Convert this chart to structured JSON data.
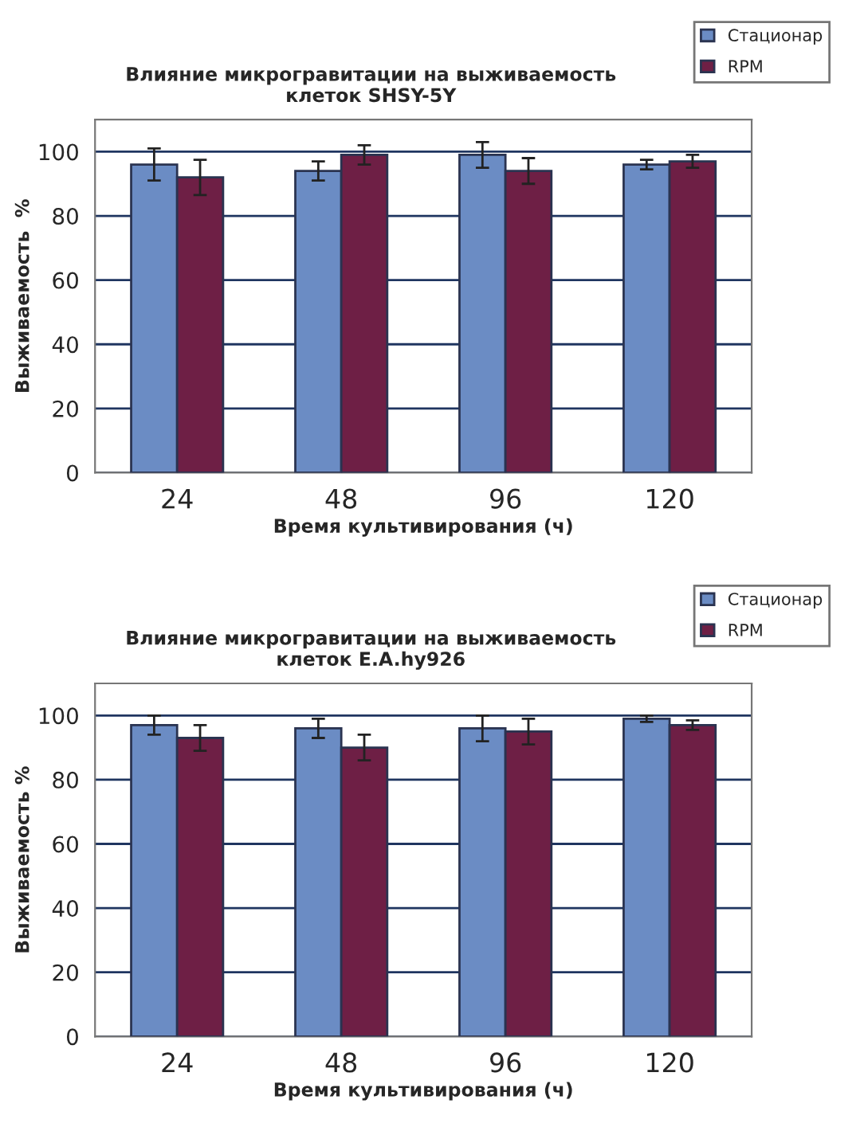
{
  "chart_data": [
    {
      "type": "bar",
      "title": "Влияние микрогравитации на выживаемость\nклеток SHSY-5Y",
      "xlabel": "Время культивирования (ч)",
      "ylabel": "Выживаемость  %",
      "categories": [
        "24",
        "48",
        "96",
        "120"
      ],
      "series": [
        {
          "name": "Стационар",
          "color": "#6b8cc4",
          "values": [
            96,
            94,
            99,
            96
          ],
          "errors": [
            5,
            3,
            4,
            1.5
          ]
        },
        {
          "name": "RPM",
          "color": "#6e1f45",
          "values": [
            92,
            99,
            94,
            97
          ],
          "errors": [
            5.5,
            3,
            4,
            2
          ]
        }
      ],
      "ylim": [
        0,
        110
      ],
      "yticks": [
        0,
        20,
        40,
        60,
        80,
        100
      ],
      "grid": "y",
      "legend": "top right"
    },
    {
      "type": "bar",
      "title": "Влияние микрогравитации на выживаемость\nклеток E.A.hy926",
      "xlabel": "Время культивирования (ч)",
      "ylabel": "Выживаемость %",
      "categories": [
        "24",
        "48",
        "96",
        "120"
      ],
      "series": [
        {
          "name": "Стационар",
          "color": "#6b8cc4",
          "values": [
            97,
            96,
            96,
            99
          ],
          "errors": [
            3,
            3,
            4,
            1
          ]
        },
        {
          "name": "RPM",
          "color": "#6e1f45",
          "values": [
            93,
            90,
            95,
            97
          ],
          "errors": [
            4,
            4,
            4,
            1.5
          ]
        }
      ],
      "ylim": [
        0,
        110
      ],
      "yticks": [
        0,
        20,
        40,
        60,
        80,
        100
      ],
      "grid": "y",
      "legend": "top right"
    }
  ]
}
